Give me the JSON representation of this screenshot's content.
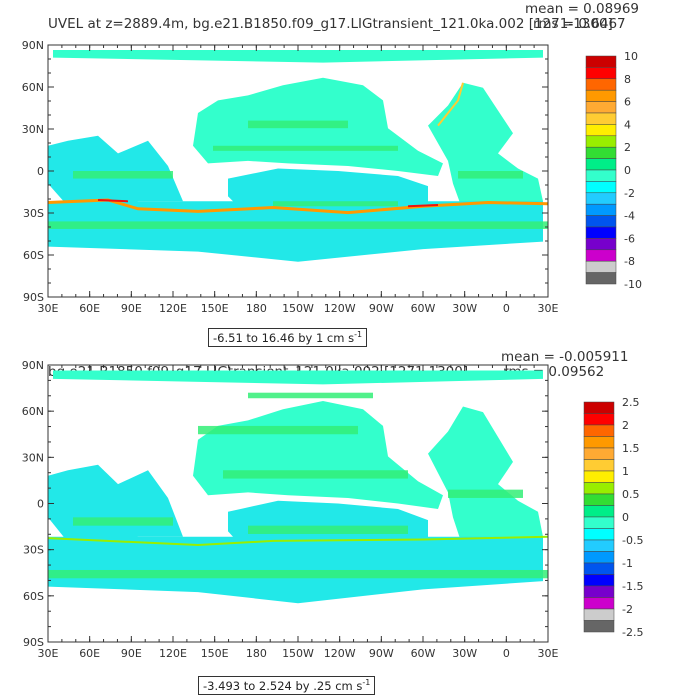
{
  "panels": [
    {
      "title": "UVEL at z=2889.4m, bg.e21.B1850.f09_g17.LIGtransient_121.0ka.002 [1271-1300]",
      "mean": "mean = 0.08969",
      "rms": "rms = 0.6467",
      "range_text": "-6.51 to 16.46 by 1 cm s",
      "range_unit_sup": "-1",
      "colorbar_labels": [
        "10",
        "8",
        "6",
        "4",
        "2",
        "0",
        "-2",
        "-4",
        "-6",
        "-8",
        "-10"
      ]
    },
    {
      "title": "bg.e21.B1850.f09_g17.LIGtransient_121.0ka.002 [1271-1300]",
      "mean": "mean = -0.005911",
      "rms": "rms = 0.09562",
      "range_text": "-3.493 to 2.524 by .25 cm s",
      "range_unit_sup": "-1",
      "colorbar_labels": [
        "2.5",
        "2",
        "1.5",
        "1",
        "0.5",
        "0",
        "-0.5",
        "-1",
        "-1.5",
        "-2",
        "-2.5"
      ]
    }
  ],
  "axes": {
    "lat_labels": [
      "90N",
      "60N",
      "30N",
      "0",
      "30S",
      "60S",
      "90S"
    ],
    "lon_labels": [
      "30E",
      "60E",
      "90E",
      "120E",
      "150E",
      "180",
      "150W",
      "120W",
      "90W",
      "60W",
      "30W",
      "0",
      "30E"
    ]
  },
  "colors": {
    "ocean_main": "#33ffcc",
    "ocean_light": "#22e8e8",
    "ocean_green": "#33ee77",
    "strong": "#ff9900",
    "red": "#ee1111",
    "colorbar": [
      "#cc0000",
      "#ff0000",
      "#ff6600",
      "#ff9900",
      "#ffaa33",
      "#ffcc33",
      "#ffee00",
      "#99ee00",
      "#33dd33",
      "#00ee88",
      "#33ffcc",
      "#00ffff",
      "#22ccff",
      "#0099ff",
      "#0055ee",
      "#0000ff",
      "#7700cc",
      "#cc00cc",
      "#cccccc",
      "#666666"
    ]
  }
}
